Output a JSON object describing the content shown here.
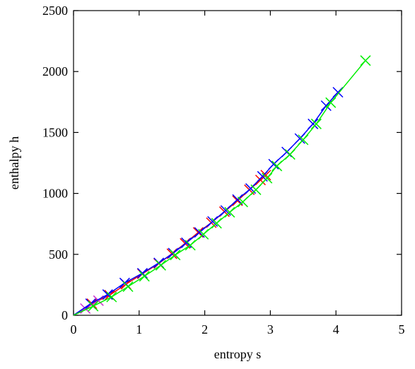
{
  "chart_data": {
    "type": "line",
    "title": "",
    "xlabel": "entropy s",
    "ylabel": "enthalpy h",
    "xlim": [
      0,
      5
    ],
    "ylim": [
      0,
      2500
    ],
    "xticks": [
      0,
      1,
      2,
      3,
      4,
      5
    ],
    "yticks": [
      0,
      500,
      1000,
      1500,
      2000,
      2500
    ],
    "grid": false,
    "legend": "none",
    "series": [
      {
        "color": "#ff0000",
        "marker": "x",
        "x": [
          0.0,
          0.28,
          0.55,
          0.8,
          1.05,
          1.3,
          1.5,
          1.7,
          1.9,
          2.1,
          2.3,
          2.5,
          2.68,
          2.85,
          2.93
        ],
        "y": [
          0,
          95,
          165,
          255,
          340,
          425,
          505,
          590,
          680,
          760,
          850,
          940,
          1030,
          1110,
          1150
        ]
      },
      {
        "color": "#cc33cc",
        "marker": "x",
        "x": [
          0.0,
          0.18,
          0.38
        ],
        "y": [
          0,
          55,
          120
        ]
      },
      {
        "color": "#0000ff",
        "marker": "x",
        "x": [
          0.0,
          0.26,
          0.52,
          0.78,
          1.05,
          1.3,
          1.52,
          1.72,
          1.92,
          2.12,
          2.32,
          2.5,
          2.7,
          2.88,
          3.05,
          3.25,
          3.45,
          3.65,
          3.85,
          4.03
        ],
        "y": [
          0,
          95,
          170,
          265,
          345,
          430,
          510,
          595,
          680,
          770,
          860,
          950,
          1040,
          1140,
          1240,
          1340,
          1450,
          1570,
          1720,
          1830
        ]
      },
      {
        "color": "#00ee00",
        "marker": "x",
        "x": [
          0.0,
          0.3,
          0.58,
          0.83,
          1.08,
          1.33,
          1.55,
          1.78,
          1.98,
          2.18,
          2.38,
          2.58,
          2.78,
          2.95,
          3.1,
          3.3,
          3.5,
          3.7,
          3.92,
          4.45
        ],
        "y": [
          0,
          75,
          150,
          235,
          320,
          410,
          495,
          575,
          665,
          755,
          845,
          930,
          1030,
          1125,
          1225,
          1320,
          1440,
          1570,
          1745,
          2090
        ]
      }
    ]
  }
}
